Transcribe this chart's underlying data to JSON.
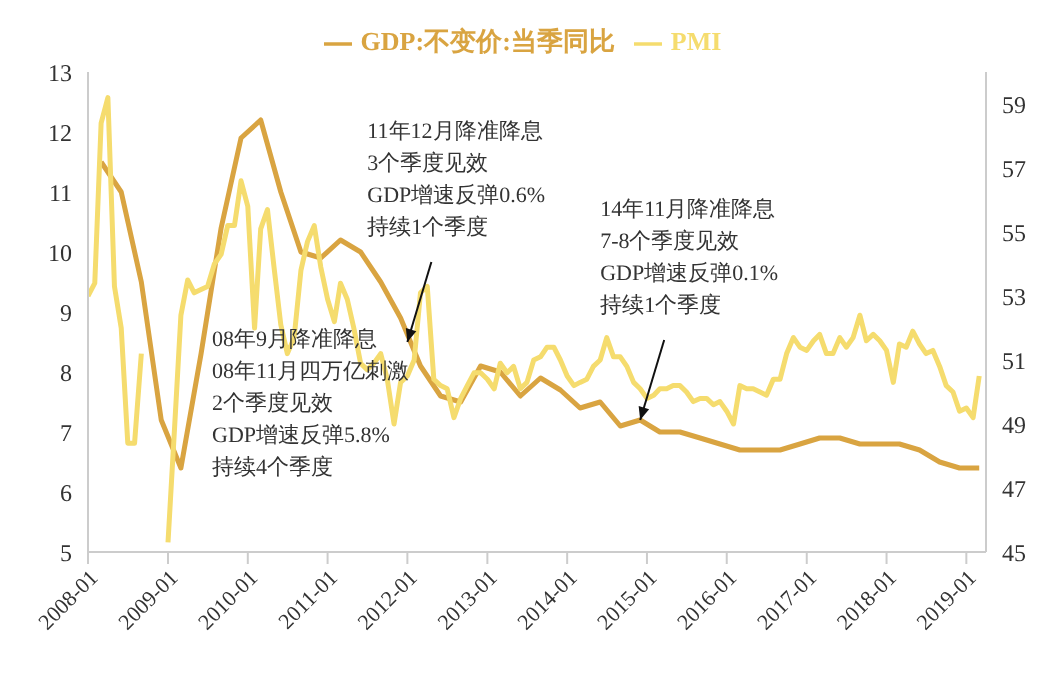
{
  "chart_data": {
    "type": "line",
    "series": [
      {
        "name": "GDP:不变价:当季同比",
        "color": "#d9a441",
        "axis": "y",
        "x": [
          "2008-03",
          "2008-06",
          "2008-09",
          "2008-12",
          "2009-03",
          "2009-06",
          "2009-09",
          "2009-12",
          "2010-03",
          "2010-06",
          "2010-09",
          "2010-12",
          "2011-03",
          "2011-06",
          "2011-09",
          "2011-12",
          "2012-03",
          "2012-06",
          "2012-09",
          "2012-12",
          "2013-03",
          "2013-06",
          "2013-09",
          "2013-12",
          "2014-03",
          "2014-06",
          "2014-09",
          "2014-12",
          "2015-03",
          "2015-06",
          "2015-09",
          "2015-12",
          "2016-03",
          "2016-06",
          "2016-09",
          "2016-12",
          "2017-03",
          "2017-06",
          "2017-09",
          "2017-12",
          "2018-03",
          "2018-06",
          "2018-09",
          "2018-12",
          "2019-03"
        ],
        "values": [
          11.5,
          11.0,
          9.5,
          7.2,
          6.4,
          8.3,
          10.4,
          11.9,
          12.2,
          11.0,
          10.0,
          9.9,
          10.2,
          10.0,
          9.5,
          8.9,
          8.1,
          7.6,
          7.5,
          8.1,
          8.0,
          7.6,
          7.9,
          7.7,
          7.4,
          7.5,
          7.1,
          7.2,
          7.0,
          7.0,
          6.9,
          6.8,
          6.7,
          6.7,
          6.7,
          6.8,
          6.9,
          6.9,
          6.8,
          6.8,
          6.8,
          6.7,
          6.5,
          6.4,
          6.4
        ]
      },
      {
        "name": "PMI",
        "color": "#f5dc6e",
        "axis": "y2",
        "x": [
          "2008-01",
          "2008-02",
          "2008-03",
          "2008-04",
          "2008-05",
          "2008-06",
          "2008-07",
          "2008-08",
          "2008-09",
          "2008-10",
          "2008-11",
          "2008-12",
          "2009-01",
          "2009-02",
          "2009-03",
          "2009-04",
          "2009-05",
          "2009-06",
          "2009-07",
          "2009-08",
          "2009-09",
          "2009-10",
          "2009-11",
          "2009-12",
          "2010-01",
          "2010-02",
          "2010-03",
          "2010-04",
          "2010-05",
          "2010-06",
          "2010-07",
          "2010-08",
          "2010-09",
          "2010-10",
          "2010-11",
          "2010-12",
          "2011-01",
          "2011-02",
          "2011-03",
          "2011-04",
          "2011-05",
          "2011-06",
          "2011-07",
          "2011-08",
          "2011-09",
          "2011-10",
          "2011-11",
          "2011-12",
          "2012-01",
          "2012-02",
          "2012-03",
          "2012-04",
          "2012-05",
          "2012-06",
          "2012-07",
          "2012-08",
          "2012-09",
          "2012-10",
          "2012-11",
          "2012-12",
          "2013-01",
          "2013-02",
          "2013-03",
          "2013-04",
          "2013-05",
          "2013-06",
          "2013-07",
          "2013-08",
          "2013-09",
          "2013-10",
          "2013-11",
          "2013-12",
          "2014-01",
          "2014-02",
          "2014-03",
          "2014-04",
          "2014-05",
          "2014-06",
          "2014-07",
          "2014-08",
          "2014-09",
          "2014-10",
          "2014-11",
          "2014-12",
          "2015-01",
          "2015-02",
          "2015-03",
          "2015-04",
          "2015-05",
          "2015-06",
          "2015-07",
          "2015-08",
          "2015-09",
          "2015-10",
          "2015-11",
          "2015-12",
          "2016-01",
          "2016-02",
          "2016-03",
          "2016-04",
          "2016-05",
          "2016-06",
          "2016-07",
          "2016-08",
          "2016-09",
          "2016-10",
          "2016-11",
          "2016-12",
          "2017-01",
          "2017-02",
          "2017-03",
          "2017-04",
          "2017-05",
          "2017-06",
          "2017-07",
          "2017-08",
          "2017-09",
          "2017-10",
          "2017-11",
          "2017-12",
          "2018-01",
          "2018-02",
          "2018-03",
          "2018-04",
          "2018-05",
          "2018-06",
          "2018-07",
          "2018-08",
          "2018-09",
          "2018-10",
          "2018-11",
          "2018-12",
          "2019-01",
          "2019-02",
          "2019-03"
        ],
        "values": [
          53.0,
          53.4,
          58.4,
          59.2,
          53.3,
          52.0,
          48.4,
          48.4,
          51.2,
          null,
          null,
          null,
          45.3,
          49.0,
          52.4,
          53.5,
          53.1,
          53.2,
          53.3,
          54.0,
          54.3,
          55.2,
          55.2,
          56.6,
          55.8,
          52.0,
          55.1,
          55.7,
          53.9,
          52.1,
          51.2,
          51.7,
          53.8,
          54.7,
          55.2,
          53.9,
          52.9,
          52.2,
          53.4,
          52.9,
          52.0,
          50.9,
          50.7,
          50.9,
          51.2,
          50.4,
          49.0,
          50.3,
          50.5,
          51.0,
          53.1,
          53.3,
          50.4,
          50.2,
          50.1,
          49.2,
          49.8,
          50.2,
          50.6,
          50.6,
          50.4,
          50.1,
          50.9,
          50.6,
          50.8,
          50.1,
          50.3,
          51.0,
          51.1,
          51.4,
          51.4,
          51.0,
          50.5,
          50.2,
          50.3,
          50.4,
          50.8,
          51.0,
          51.7,
          51.1,
          51.1,
          50.8,
          50.3,
          50.1,
          49.8,
          49.9,
          50.1,
          50.1,
          50.2,
          50.2,
          50.0,
          49.7,
          49.8,
          49.8,
          49.6,
          49.7,
          49.4,
          49.0,
          50.2,
          50.1,
          50.1,
          50.0,
          49.9,
          50.4,
          50.4,
          51.2,
          51.7,
          51.4,
          51.3,
          51.6,
          51.8,
          51.2,
          51.2,
          51.7,
          51.4,
          51.7,
          52.4,
          51.6,
          51.8,
          51.6,
          51.3,
          50.3,
          51.5,
          51.4,
          51.9,
          51.5,
          51.2,
          51.3,
          50.8,
          50.2,
          50.0,
          49.4,
          49.5,
          49.2,
          50.5
        ]
      }
    ],
    "xlim": [
      "2008-01",
      "2019-04"
    ],
    "xticks": [
      "2008-01",
      "2009-01",
      "2010-01",
      "2011-01",
      "2012-01",
      "2013-01",
      "2014-01",
      "2015-01",
      "2016-01",
      "2017-01",
      "2018-01",
      "2019-01"
    ],
    "ylim": [
      5,
      13
    ],
    "yticks": [
      5,
      6,
      7,
      8,
      9,
      10,
      11,
      12,
      13
    ],
    "y2lim": [
      45,
      60
    ],
    "y2ticks": [
      45,
      47,
      49,
      51,
      53,
      55,
      57,
      59
    ],
    "legend": "top",
    "grid": false,
    "marker": "none",
    "line_style": "solid",
    "annotations": [
      "08年9月降准降息\n08年11月四万亿刺激\n2个季度见效\nGDP增速反弹5.8%\n持续4个季度",
      {
        "text": "11年12月降准降息\n3个季度见效\nGDP增速反弹0.6%\n持续1个季度",
        "x": "2012-01",
        "y": 8.5
      },
      {
        "text": "14年11月降准降息\n7-8个季度见效\nGDP增速反弹0.1%\n持续1个季度",
        "x": "2014-12",
        "y": 7.2
      }
    ]
  }
}
